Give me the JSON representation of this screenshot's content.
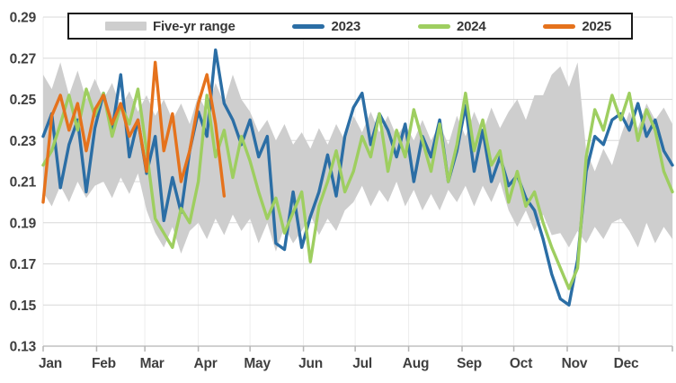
{
  "legend": {
    "items": [
      {
        "label": "Five-yr range",
        "type": "band",
        "color": "#cecece"
      },
      {
        "label": "2023",
        "type": "line",
        "color": "#2b6ea5"
      },
      {
        "label": "2024",
        "type": "line",
        "color": "#9ece60"
      },
      {
        "label": "2025",
        "type": "line",
        "color": "#e5721c"
      }
    ]
  },
  "style": {
    "hgrid_color": "#d8d8d8",
    "vgrid_color": "#ededed",
    "axis_line_color": "#c0c0c0",
    "tick_color": "#b5b5b5",
    "label_color": "#3f3f3f",
    "band_color": "#cecece",
    "line_width": 3.4
  },
  "chart_data": {
    "type": "line",
    "title": "",
    "xlabel": "",
    "ylabel": "",
    "legend_position": "top",
    "grid": {
      "horizontal": true,
      "vertical_month": true
    },
    "ylim": [
      0.13,
      0.29
    ],
    "y_tick_values": [
      0.13,
      0.15,
      0.17,
      0.19,
      0.21,
      0.23,
      0.25,
      0.27,
      0.29
    ],
    "y_tick_labels": [
      "0.13",
      "0.15",
      "0.17",
      "0.19",
      "0.21",
      "0.23",
      "0.25",
      "0.27",
      "0.29"
    ],
    "x_tick_labels": [
      "Jan",
      "Feb",
      "Mar",
      "Apr",
      "May",
      "Jun",
      "Jul",
      "Aug",
      "Sep",
      "Oct",
      "Nov",
      "Dec"
    ],
    "month_start_days": [
      0,
      31,
      59,
      90,
      120,
      151,
      181,
      212,
      243,
      273,
      304,
      334
    ],
    "x_domain_days": [
      0,
      365
    ],
    "day_step": 5,
    "band": {
      "name": "Five-yr range",
      "color": "#cecece",
      "hi": [
        0.262,
        0.255,
        0.268,
        0.252,
        0.264,
        0.25,
        0.26,
        0.25,
        0.258,
        0.246,
        0.254,
        0.244,
        0.252,
        0.242,
        0.25,
        0.24,
        0.248,
        0.238,
        0.252,
        0.244,
        0.258,
        0.248,
        0.262,
        0.25,
        0.244,
        0.234,
        0.24,
        0.23,
        0.238,
        0.228,
        0.234,
        0.226,
        0.236,
        0.228,
        0.238,
        0.23,
        0.242,
        0.234,
        0.244,
        0.234,
        0.242,
        0.232,
        0.238,
        0.23,
        0.24,
        0.23,
        0.238,
        0.228,
        0.242,
        0.232,
        0.244,
        0.234,
        0.246,
        0.236,
        0.244,
        0.25,
        0.24,
        0.252,
        0.252,
        0.262,
        0.266,
        0.256,
        0.268,
        0.225,
        0.215,
        0.226,
        0.218,
        0.232,
        0.244,
        0.236,
        0.248,
        0.24,
        0.246,
        0.238
      ],
      "lo": [
        0.205,
        0.198,
        0.208,
        0.2,
        0.21,
        0.202,
        0.208,
        0.21,
        0.202,
        0.212,
        0.204,
        0.214,
        0.196,
        0.185,
        0.178,
        0.188,
        0.175,
        0.186,
        0.19,
        0.182,
        0.192,
        0.184,
        0.194,
        0.186,
        0.192,
        0.18,
        0.19,
        0.176,
        0.188,
        0.18,
        0.186,
        0.194,
        0.184,
        0.192,
        0.186,
        0.196,
        0.2,
        0.208,
        0.198,
        0.206,
        0.2,
        0.21,
        0.198,
        0.206,
        0.196,
        0.204,
        0.196,
        0.206,
        0.2,
        0.208,
        0.198,
        0.208,
        0.2,
        0.21,
        0.196,
        0.188,
        0.196,
        0.186,
        0.194,
        0.184,
        0.185,
        0.178,
        0.186,
        0.18,
        0.188,
        0.182,
        0.19,
        0.192,
        0.186,
        0.178,
        0.19,
        0.18,
        0.188,
        0.182
      ]
    },
    "series": [
      {
        "name": "2023",
        "color": "#2b6ea5",
        "values": [
          0.232,
          0.243,
          0.207,
          0.228,
          0.24,
          0.205,
          0.236,
          0.253,
          0.235,
          0.262,
          0.222,
          0.24,
          0.214,
          0.232,
          0.191,
          0.212,
          0.195,
          0.225,
          0.244,
          0.232,
          0.274,
          0.248,
          0.24,
          0.228,
          0.24,
          0.222,
          0.232,
          0.18,
          0.177,
          0.205,
          0.178,
          0.193,
          0.205,
          0.223,
          0.203,
          0.232,
          0.246,
          0.253,
          0.228,
          0.243,
          0.235,
          0.222,
          0.238,
          0.21,
          0.232,
          0.222,
          0.24,
          0.21,
          0.225,
          0.247,
          0.215,
          0.235,
          0.21,
          0.222,
          0.208,
          0.213,
          0.202,
          0.196,
          0.182,
          0.165,
          0.153,
          0.15,
          0.172,
          0.215,
          0.232,
          0.228,
          0.24,
          0.243,
          0.235,
          0.248,
          0.232,
          0.24,
          0.225,
          0.218
        ]
      },
      {
        "name": "2024",
        "color": "#9ece60",
        "values": [
          0.218,
          0.225,
          0.238,
          0.252,
          0.235,
          0.255,
          0.242,
          0.253,
          0.232,
          0.247,
          0.238,
          0.255,
          0.225,
          0.192,
          0.185,
          0.178,
          0.197,
          0.19,
          0.21,
          0.252,
          0.222,
          0.235,
          0.212,
          0.232,
          0.22,
          0.205,
          0.192,
          0.202,
          0.185,
          0.195,
          0.205,
          0.171,
          0.198,
          0.21,
          0.225,
          0.205,
          0.215,
          0.232,
          0.222,
          0.243,
          0.215,
          0.235,
          0.222,
          0.245,
          0.23,
          0.215,
          0.238,
          0.21,
          0.228,
          0.253,
          0.225,
          0.24,
          0.218,
          0.225,
          0.2,
          0.215,
          0.198,
          0.205,
          0.19,
          0.178,
          0.168,
          0.158,
          0.168,
          0.222,
          0.245,
          0.235,
          0.252,
          0.24,
          0.253,
          0.23,
          0.245,
          0.235,
          0.215,
          0.205
        ]
      },
      {
        "name": "2025",
        "color": "#e5721c",
        "values": [
          0.2,
          0.242,
          0.252,
          0.235,
          0.248,
          0.225,
          0.245,
          0.252,
          0.238,
          0.248,
          0.232,
          0.24,
          0.215,
          0.268,
          0.225,
          0.243,
          0.21,
          0.225,
          0.248,
          0.262,
          0.238,
          0.203
        ]
      }
    ]
  }
}
